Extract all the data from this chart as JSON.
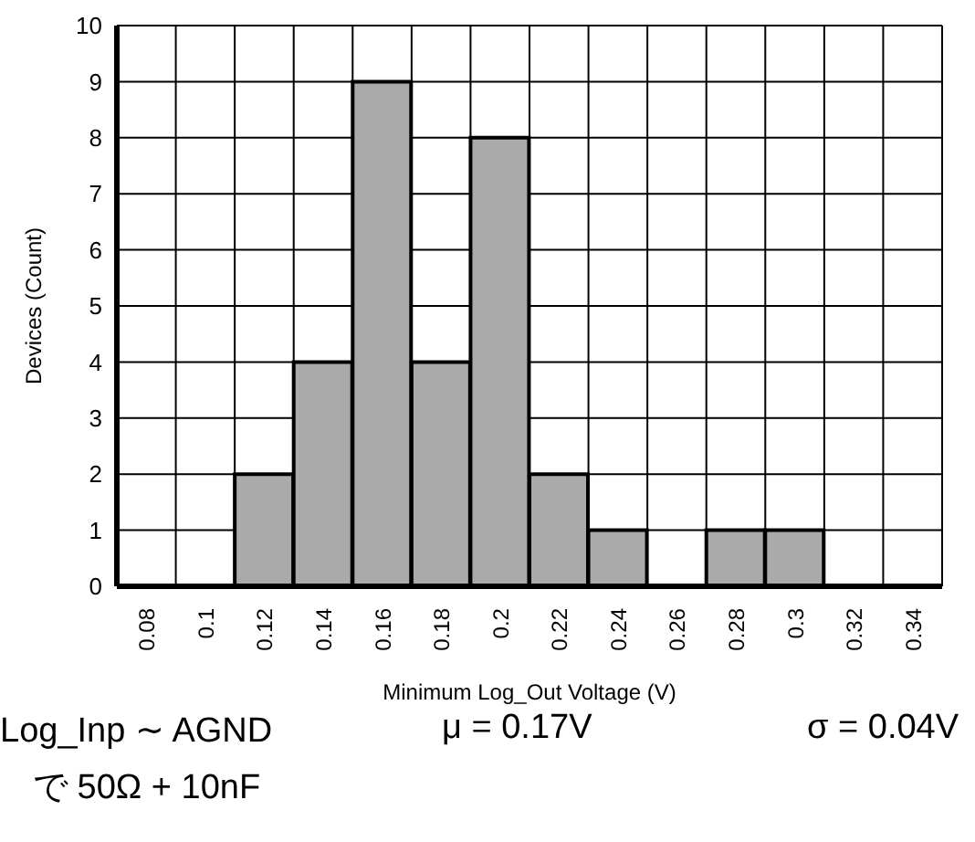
{
  "chart_data": {
    "type": "bar",
    "xlabel": "Minimum Log_Out Voltage (V)",
    "ylabel": "Devices (Count)",
    "categories": [
      "0.08",
      "0.1",
      "0.12",
      "0.14",
      "0.16",
      "0.18",
      "0.2",
      "0.22",
      "0.24",
      "0.26",
      "0.28",
      "0.3",
      "0.32",
      "0.34"
    ],
    "values": [
      0,
      0,
      2,
      4,
      9,
      4,
      8,
      2,
      1,
      0,
      1,
      1,
      0,
      0
    ],
    "color": "#aaaaaa",
    "ylim": [
      0,
      10
    ],
    "yticks": [
      0,
      1,
      2,
      3,
      4,
      5,
      6,
      7,
      8,
      9,
      10
    ],
    "grid": true,
    "annotations": [
      "Log_Inp ∼ AGND",
      "μ = 0.17V",
      "σ = 0.04V",
      "で 50Ω + 10nF"
    ]
  }
}
